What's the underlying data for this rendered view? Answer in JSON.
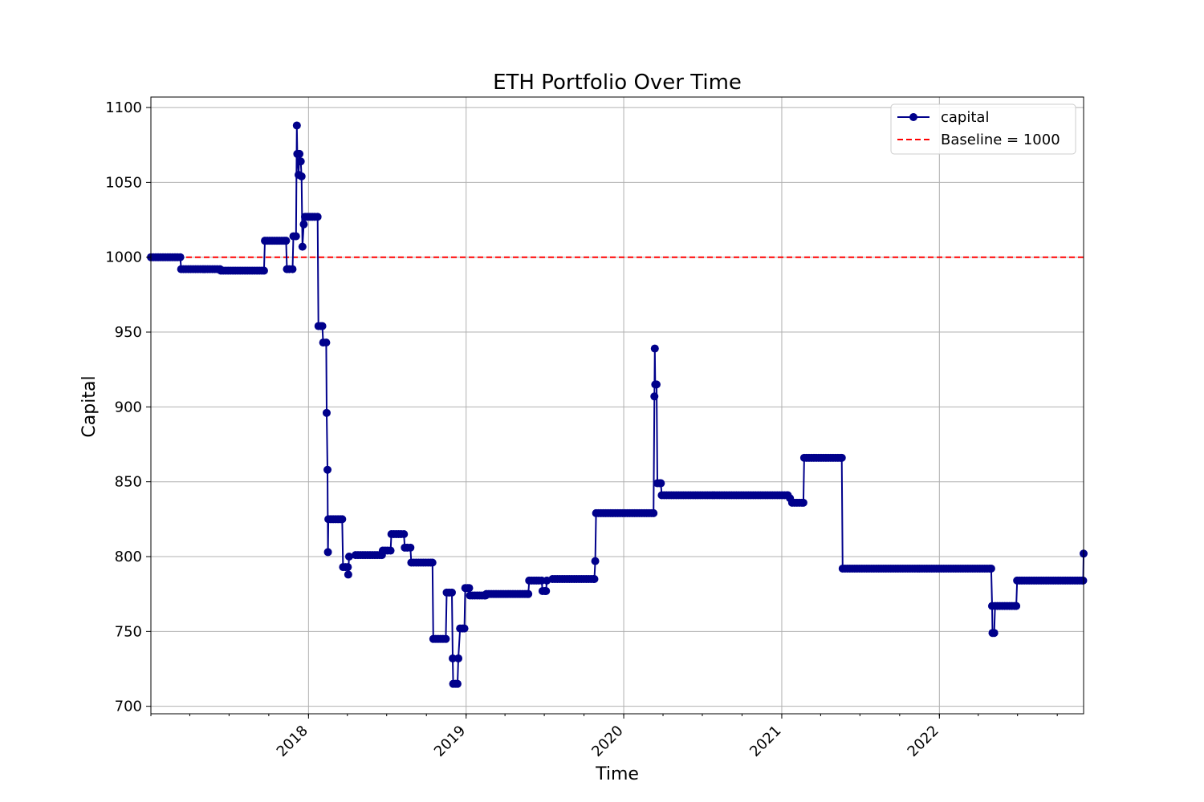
{
  "chart_data": {
    "type": "line",
    "title": "ETH Portfolio Over Time",
    "xlabel": "Time",
    "ylabel": "Capital",
    "xlim": [
      "2017-01-01",
      "2022-12-01"
    ],
    "ylim": [
      695,
      1107
    ],
    "x_ticks": [
      "2018-01-01",
      "2019-01-01",
      "2020-01-01",
      "2021-01-01",
      "2022-01-01"
    ],
    "x_tick_labels": [
      "2018",
      "2019",
      "2020",
      "2021",
      "2022"
    ],
    "y_ticks": [
      700,
      750,
      800,
      850,
      900,
      950,
      1000,
      1050,
      1100
    ],
    "y_tick_labels": [
      "700",
      "750",
      "800",
      "850",
      "900",
      "950",
      "1000",
      "1050",
      "1100"
    ],
    "grid": true,
    "legend_position": "top-right",
    "colors": {
      "capital": "#00008b",
      "baseline": "#ff0000"
    },
    "series": [
      {
        "name": "capital",
        "style": "step-markers",
        "points": [
          [
            "2017-01-01",
            1000
          ],
          [
            "2017-03-10",
            1000
          ],
          [
            "2017-03-12",
            992
          ],
          [
            "2017-06-10",
            992
          ],
          [
            "2017-06-12",
            991
          ],
          [
            "2017-09-20",
            991
          ],
          [
            "2017-09-22",
            1011
          ],
          [
            "2017-11-10",
            1011
          ],
          [
            "2017-11-12",
            992
          ],
          [
            "2017-11-25",
            992
          ],
          [
            "2017-11-27",
            1014
          ],
          [
            "2017-12-03",
            1014
          ],
          [
            "2017-12-05",
            1088
          ],
          [
            "2017-12-06",
            1069
          ],
          [
            "2017-12-09",
            1055
          ],
          [
            "2017-12-11",
            1069
          ],
          [
            "2017-12-14",
            1064
          ],
          [
            "2017-12-16",
            1054
          ],
          [
            "2017-12-18",
            1007
          ],
          [
            "2017-12-21",
            1022
          ],
          [
            "2017-12-24",
            1027
          ],
          [
            "2018-01-22",
            1027
          ],
          [
            "2018-01-24",
            954
          ],
          [
            "2018-02-02",
            954
          ],
          [
            "2018-02-04",
            943
          ],
          [
            "2018-02-11",
            943
          ],
          [
            "2018-02-12",
            896
          ],
          [
            "2018-02-14",
            858
          ],
          [
            "2018-02-15",
            803
          ],
          [
            "2018-02-16",
            825
          ],
          [
            "2018-03-20",
            825
          ],
          [
            "2018-03-22",
            793
          ],
          [
            "2018-04-02",
            793
          ],
          [
            "2018-04-03",
            788
          ],
          [
            "2018-04-05",
            800
          ],
          [
            "2018-04-20",
            801
          ],
          [
            "2018-06-20",
            801
          ],
          [
            "2018-06-22",
            804
          ],
          [
            "2018-07-10",
            804
          ],
          [
            "2018-07-12",
            815
          ],
          [
            "2018-08-10",
            815
          ],
          [
            "2018-08-12",
            806
          ],
          [
            "2018-08-25",
            806
          ],
          [
            "2018-08-27",
            796
          ],
          [
            "2018-10-15",
            796
          ],
          [
            "2018-10-17",
            745
          ],
          [
            "2018-11-15",
            745
          ],
          [
            "2018-11-17",
            776
          ],
          [
            "2018-11-29",
            776
          ],
          [
            "2018-12-01",
            732
          ],
          [
            "2018-12-02",
            715
          ],
          [
            "2018-12-12",
            715
          ],
          [
            "2018-12-14",
            732
          ],
          [
            "2018-12-18",
            752
          ],
          [
            "2018-12-28",
            752
          ],
          [
            "2018-12-30",
            779
          ],
          [
            "2019-01-08",
            779
          ],
          [
            "2019-01-10",
            774
          ],
          [
            "2019-02-15",
            774
          ],
          [
            "2019-02-17",
            775
          ],
          [
            "2019-05-25",
            775
          ],
          [
            "2019-05-27",
            784
          ],
          [
            "2019-06-25",
            784
          ],
          [
            "2019-06-27",
            777
          ],
          [
            "2019-07-05",
            777
          ],
          [
            "2019-07-07",
            784
          ],
          [
            "2019-07-20",
            785
          ],
          [
            "2019-10-25",
            785
          ],
          [
            "2019-10-27",
            797
          ],
          [
            "2019-10-29",
            829
          ],
          [
            "2020-03-10",
            829
          ],
          [
            "2020-03-12",
            907
          ],
          [
            "2020-03-13",
            939
          ],
          [
            "2020-03-14",
            915
          ],
          [
            "2020-03-17",
            915
          ],
          [
            "2020-03-19",
            849
          ],
          [
            "2020-03-27",
            849
          ],
          [
            "2020-03-29",
            841
          ],
          [
            "2021-01-15",
            841
          ],
          [
            "2021-01-20",
            839
          ],
          [
            "2021-01-25",
            836
          ],
          [
            "2021-02-20",
            836
          ],
          [
            "2021-02-22",
            866
          ],
          [
            "2021-05-20",
            866
          ],
          [
            "2021-05-22",
            792
          ],
          [
            "2022-05-01",
            792
          ],
          [
            "2022-05-03",
            767
          ],
          [
            "2022-05-04",
            749
          ],
          [
            "2022-05-08",
            749
          ],
          [
            "2022-05-10",
            767
          ],
          [
            "2022-06-28",
            767
          ],
          [
            "2022-06-30",
            784
          ],
          [
            "2022-11-30",
            784
          ],
          [
            "2022-12-01",
            802
          ]
        ]
      },
      {
        "name": "Baseline = 1000",
        "style": "dashed",
        "value": 1000
      }
    ]
  }
}
